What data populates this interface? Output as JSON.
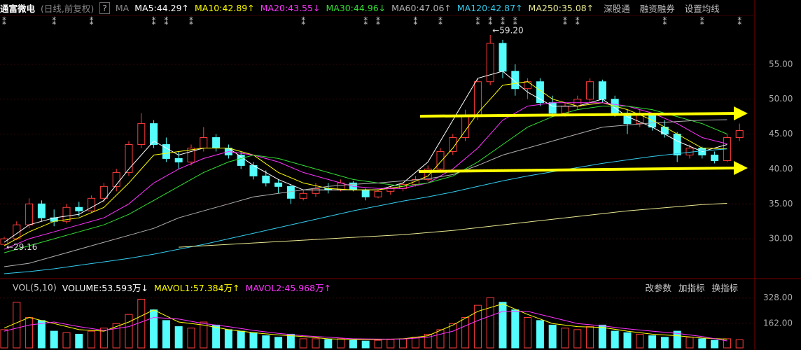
{
  "chart_data": {
    "type": "candlestick",
    "title": "通富微电",
    "subtitle": "(日线,前复权)",
    "help": "?",
    "ma_title": "MA",
    "links": [
      "深股通",
      "融资融券",
      "设置均线"
    ],
    "up_color": "#ff3c3c",
    "down_color": "#54fcfc",
    "ylim": [
      24.6,
      62.4
    ],
    "yticks": [
      {
        "value": 30,
        "label": "30.00"
      },
      {
        "value": 35,
        "label": "35.00"
      },
      {
        "value": 40,
        "label": "40.00"
      },
      {
        "value": 45,
        "label": "45.00"
      },
      {
        "value": 50,
        "label": "50.00"
      },
      {
        "value": 55,
        "label": "55.00"
      }
    ],
    "grid": true,
    "ohlc": [
      [
        29.2,
        30.3,
        29.16,
        30.0
      ],
      [
        30.0,
        32.5,
        29.8,
        32.0
      ],
      [
        32.0,
        35.8,
        31.5,
        35.0
      ],
      [
        35.0,
        35.5,
        32.5,
        33.0
      ],
      [
        33.0,
        34.2,
        31.8,
        32.5
      ],
      [
        32.5,
        35.0,
        32.2,
        34.5
      ],
      [
        34.5,
        35.3,
        33.2,
        34.0
      ],
      [
        34.0,
        36.2,
        33.8,
        35.8
      ],
      [
        35.8,
        38.0,
        35.2,
        37.5
      ],
      [
        37.5,
        40.0,
        36.8,
        39.5
      ],
      [
        39.5,
        44.0,
        39.0,
        43.5
      ],
      [
        43.5,
        48.0,
        43.0,
        46.5
      ],
      [
        46.5,
        47.0,
        43.0,
        43.5
      ],
      [
        43.5,
        44.5,
        41.0,
        41.5
      ],
      [
        41.5,
        42.5,
        40.0,
        41.0
      ],
      [
        41.0,
        43.5,
        40.5,
        43.0
      ],
      [
        43.0,
        46.0,
        42.5,
        44.5
      ],
      [
        44.5,
        45.0,
        42.5,
        43.0
      ],
      [
        43.0,
        43.5,
        41.5,
        42.0
      ],
      [
        42.0,
        42.5,
        40.0,
        40.5
      ],
      [
        40.5,
        41.0,
        38.5,
        39.0
      ],
      [
        39.0,
        39.8,
        37.5,
        38.0
      ],
      [
        38.0,
        38.5,
        36.5,
        37.5
      ],
      [
        37.5,
        37.8,
        35.0,
        35.8
      ],
      [
        35.8,
        37.0,
        35.5,
        36.5
      ],
      [
        36.5,
        38.0,
        36.0,
        37.2
      ],
      [
        37.2,
        38.0,
        36.5,
        37.0
      ],
      [
        37.0,
        38.5,
        36.8,
        38.0
      ],
      [
        38.0,
        38.3,
        36.8,
        37.0
      ],
      [
        37.0,
        37.2,
        35.5,
        36.0
      ],
      [
        36.0,
        37.0,
        35.8,
        36.8
      ],
      [
        36.8,
        37.5,
        36.3,
        37.2
      ],
      [
        37.2,
        38.0,
        36.8,
        37.8
      ],
      [
        37.8,
        39.0,
        37.5,
        38.5
      ],
      [
        38.5,
        40.5,
        38.2,
        40.0
      ],
      [
        40.0,
        43.0,
        39.8,
        42.5
      ],
      [
        42.5,
        45.0,
        42.0,
        44.5
      ],
      [
        44.5,
        48.5,
        44.0,
        47.5
      ],
      [
        47.5,
        53.0,
        47.0,
        52.5
      ],
      [
        52.5,
        59.2,
        52.0,
        58.0
      ],
      [
        58.0,
        58.5,
        53.0,
        54.0
      ],
      [
        54.0,
        55.0,
        50.5,
        51.5
      ],
      [
        51.5,
        53.0,
        50.0,
        52.5
      ],
      [
        52.5,
        53.0,
        49.0,
        49.5
      ],
      [
        49.5,
        50.5,
        47.5,
        48.0
      ],
      [
        48.0,
        49.5,
        47.5,
        49.0
      ],
      [
        49.0,
        50.5,
        48.5,
        50.0
      ],
      [
        50.0,
        53.0,
        49.5,
        52.5
      ],
      [
        52.5,
        52.8,
        49.5,
        50.0
      ],
      [
        50.0,
        50.5,
        47.5,
        48.0
      ],
      [
        48.0,
        48.5,
        45.0,
        46.5
      ],
      [
        46.5,
        48.5,
        46.0,
        47.8
      ],
      [
        47.8,
        48.0,
        45.5,
        46.0
      ],
      [
        46.0,
        47.0,
        44.5,
        45.0
      ],
      [
        45.0,
        45.3,
        41.0,
        42.0
      ],
      [
        42.0,
        43.5,
        41.5,
        43.0
      ],
      [
        43.0,
        43.2,
        41.5,
        42.0
      ],
      [
        42.0,
        42.5,
        40.8,
        41.2
      ],
      [
        41.2,
        45.0,
        41.0,
        44.5
      ],
      [
        44.5,
        46.5,
        44.0,
        45.5
      ]
    ],
    "annotations": [
      {
        "text": "←59.20",
        "at": 39,
        "value": 59.2
      },
      {
        "text": "←29.16",
        "at": 0,
        "value": 29.16
      }
    ],
    "event_symbol": "⁑",
    "event_at": [
      0,
      4,
      7,
      12,
      13,
      15,
      24,
      29,
      30,
      33,
      35,
      38,
      39,
      40,
      41,
      45,
      46,
      53,
      56,
      59
    ],
    "ma_x": [
      0,
      2,
      4,
      6,
      8,
      10,
      12,
      14,
      16,
      18,
      20,
      22,
      24,
      26,
      28,
      30,
      32,
      34,
      36,
      38,
      40,
      42,
      44,
      46,
      48,
      50,
      52,
      54,
      56,
      58
    ],
    "series": [
      {
        "name": "MA5",
        "label": "MA5:44.29↑",
        "color": "#ffffff",
        "values": [
          29.5,
          32,
          33,
          33.5,
          35.5,
          40,
          44,
          42,
          43,
          43,
          40.5,
          38.5,
          37,
          37,
          37,
          37,
          38,
          41,
          47,
          53,
          54,
          51,
          49,
          49,
          50,
          47.5,
          46,
          44,
          42.5,
          43.5
        ]
      },
      {
        "name": "MA10",
        "label": "MA10:42.89↑",
        "color": "#ffff00",
        "values": [
          29,
          31,
          32.5,
          33,
          34.5,
          38,
          42,
          42.5,
          43,
          43,
          42,
          39.5,
          38,
          37.2,
          37,
          37,
          37.5,
          39,
          43,
          48,
          52,
          52.5,
          50,
          49,
          49.5,
          48.5,
          47,
          45,
          43,
          42.9
        ]
      },
      {
        "name": "MA20",
        "label": "MA20:43.55↓",
        "color": "#ff33ff",
        "values": [
          28.5,
          30,
          31,
          32,
          33,
          35,
          38,
          40,
          41.5,
          42.5,
          42,
          41,
          39.5,
          38.5,
          37.5,
          37.2,
          37.2,
          38,
          40,
          43,
          47,
          49,
          49.5,
          49.5,
          49.5,
          49,
          48,
          46.5,
          44.5,
          43.6
        ]
      },
      {
        "name": "MA30",
        "label": "MA30:44.96↓",
        "color": "#33dd33",
        "values": [
          28,
          29,
          30,
          31,
          32,
          33.5,
          35.5,
          37.5,
          39.5,
          41,
          42,
          41.5,
          40.5,
          39.5,
          38.5,
          38,
          37.5,
          38,
          39,
          41,
          43.5,
          46,
          47.5,
          48.5,
          49,
          49,
          48.5,
          47.5,
          46.5,
          45
        ]
      },
      {
        "name": "MA60",
        "label": "MA60:47.06↑",
        "color": "#b0b0b0",
        "values": [
          26,
          26.5,
          27.5,
          28.5,
          29.5,
          30.5,
          31.5,
          33,
          34,
          35,
          36,
          36.5,
          37,
          37.5,
          37.8,
          38,
          38.3,
          38.6,
          39.2,
          40.5,
          42,
          43,
          44,
          45,
          46,
          46.3,
          46.6,
          46.8,
          47,
          47.06
        ]
      },
      {
        "name": "MA120",
        "label": "MA120:42.87↑",
        "color": "#33ccee",
        "values": [
          25,
          25.3,
          25.7,
          26.2,
          26.7,
          27.2,
          27.8,
          28.5,
          29.2,
          30,
          30.8,
          31.6,
          32.4,
          33.2,
          34,
          34.7,
          35.4,
          36,
          36.7,
          37.5,
          38.3,
          39,
          39.6,
          40.2,
          40.8,
          41.3,
          41.8,
          42.2,
          42.6,
          42.87
        ]
      },
      {
        "name": "MA250",
        "label": "MA250:35.08↑",
        "color": "#e8e890",
        "values": [
          null,
          null,
          null,
          null,
          null,
          null,
          null,
          28.8,
          29,
          29.2,
          29.4,
          29.6,
          29.8,
          30,
          30.2,
          30.4,
          30.6,
          30.9,
          31.2,
          31.6,
          32,
          32.4,
          32.8,
          33.2,
          33.6,
          34,
          34.3,
          34.6,
          34.9,
          35.08
        ]
      }
    ],
    "volume": {
      "title": "VOL(5,10)",
      "labels": [
        {
          "text": "VOLUME:53.593万↓",
          "color": "#ffffff"
        },
        {
          "text": "MAVOL1:57.384万↑",
          "color": "#ffff00"
        },
        {
          "text": "MAVOL2:45.968万↑",
          "color": "#ff33ff"
        }
      ],
      "buttons": [
        "改参数",
        "加指标",
        "换指标"
      ],
      "ylim": [
        0,
        345
      ],
      "yticks": [
        {
          "value": 162,
          "label": "162.00"
        },
        {
          "value": 328,
          "label": "328.00"
        }
      ],
      "values": [
        120,
        300,
        200,
        180,
        110,
        100,
        90,
        110,
        130,
        160,
        220,
        320,
        250,
        180,
        140,
        130,
        170,
        150,
        120,
        110,
        100,
        80,
        70,
        90,
        60,
        60,
        55,
        60,
        50,
        45,
        50,
        55,
        60,
        70,
        90,
        120,
        160,
        200,
        280,
        330,
        300,
        250,
        200,
        180,
        150,
        130,
        120,
        140,
        150,
        110,
        100,
        90,
        80,
        70,
        110,
        70,
        60,
        50,
        60,
        53.593
      ],
      "series": [
        {
          "name": "MAVOL1",
          "color": "#ffff00",
          "values": [
            130,
            200,
            160,
            120,
            110,
            170,
            250,
            170,
            150,
            120,
            100,
            85,
            75,
            60,
            55,
            55,
            60,
            80,
            150,
            240,
            290,
            220,
            160,
            140,
            135,
            110,
            90,
            80,
            65,
            57.384
          ]
        },
        {
          "name": "MAVOL2",
          "color": "#ff33ff",
          "values": [
            110,
            150,
            170,
            140,
            115,
            140,
            200,
            190,
            160,
            140,
            115,
            95,
            80,
            70,
            60,
            58,
            58,
            70,
            110,
            180,
            240,
            240,
            200,
            160,
            145,
            125,
            110,
            95,
            75,
            45.968
          ]
        }
      ]
    }
  }
}
